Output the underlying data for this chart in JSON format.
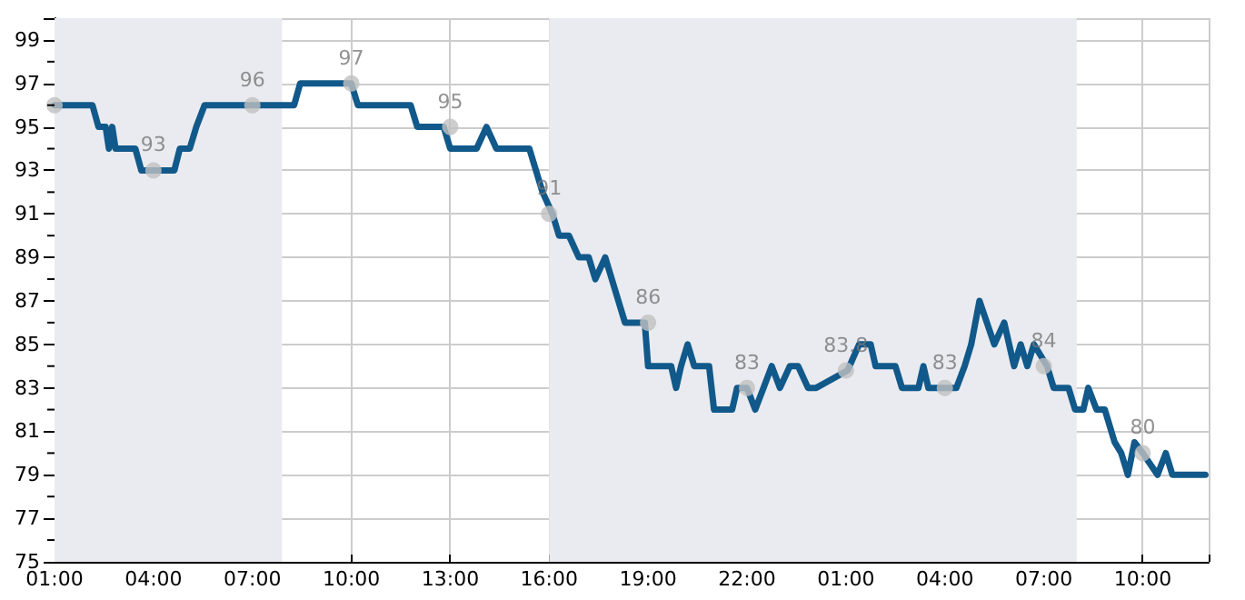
{
  "chart_data": {
    "type": "line",
    "xlim": [
      "--01-01T01:00",
      "--01-02T12:00"
    ],
    "xticks": [
      {
        "value": "--01-01T01:00",
        "label": "01:00"
      },
      {
        "value": "--01-01T04:00",
        "label": "04:00"
      },
      {
        "value": "--01-01T07:00",
        "label": "07:00"
      },
      {
        "value": "--01-01T10:00",
        "label": "10:00"
      },
      {
        "value": "--01-01T13:00",
        "label": "13:00"
      },
      {
        "value": "--01-01T16:00",
        "label": "16:00"
      },
      {
        "value": "--01-01T19:00",
        "label": "19:00"
      },
      {
        "value": "--01-01T22:00",
        "label": "22:00"
      },
      {
        "value": "--01-02T01:00",
        "label": "01:00"
      },
      {
        "value": "--01-02T04:00",
        "label": "04:00"
      },
      {
        "value": "--01-02T07:00",
        "label": "07:00"
      },
      {
        "value": "--01-02T10:00",
        "label": "10:00"
      }
    ],
    "ylim": [
      75,
      100
    ],
    "yticks": [
      75,
      {
        "value": 76,
        "label": null
      },
      77,
      {
        "value": 78,
        "label": null
      },
      79,
      {
        "value": 80,
        "label": null
      },
      81,
      {
        "value": 82,
        "label": null
      },
      83,
      {
        "value": 84,
        "label": null
      },
      85,
      {
        "value": 86,
        "label": null
      },
      87,
      {
        "value": 88,
        "label": null
      },
      89,
      {
        "value": 90,
        "label": null
      },
      91,
      {
        "value": 92,
        "label": null
      },
      93,
      {
        "value": 94,
        "label": null
      },
      95,
      {
        "value": 96,
        "label": null
      },
      97,
      {
        "value": 98,
        "label": null
      },
      99
    ],
    "grid": true,
    "bands": [
      {
        "axis": "x",
        "from": "--01-01T01:00",
        "to": "--01-01T07:54",
        "color": "#eaebf0"
      },
      {
        "axis": "x",
        "from": "--01-01T16:00",
        "to": "--01-02T08:00",
        "color": "#eaebf0"
      }
    ],
    "series": [
      {
        "color": "#11598a",
        "marker": "none",
        "line_style": "solid",
        "x": [
          "--01-01T01:00",
          "--01-01T02:09",
          "--01-01T02:20",
          "--01-01T02:33",
          "--01-01T02:39",
          "--01-01T02:45",
          "--01-01T02:51",
          "--01-01T03:27",
          "--01-01T03:38",
          "--01-01T04:38",
          "--01-01T04:48",
          "--01-01T05:06",
          "--01-01T05:18",
          "--01-01T05:33",
          "--01-01T08:16",
          "--01-01T08:27",
          "--01-01T10:00",
          "--01-01T10:12",
          "--01-01T11:48",
          "--01-01T12:00",
          "--01-01T12:48",
          "--01-01T13:00",
          "--01-01T13:48",
          "--01-01T14:06",
          "--01-01T14:24",
          "--01-01T15:24",
          "--01-01T15:36",
          "--01-01T15:48",
          "--01-01T16:06",
          "--01-01T16:18",
          "--01-01T16:36",
          "--01-01T16:54",
          "--01-01T17:12",
          "--01-01T17:24",
          "--01-01T17:42",
          "--01-01T17:54",
          "--01-01T18:06",
          "--01-01T18:18",
          "--01-01T18:54",
          "--01-01T19:00",
          "--01-01T19:42",
          "--01-01T19:51",
          "--01-01T20:00",
          "--01-01T20:12",
          "--01-01T20:24",
          "--01-01T20:51",
          "--01-01T21:00",
          "--01-01T21:33",
          "--01-01T21:42",
          "--01-01T22:00",
          "--01-01T22:15",
          "--01-01T22:30",
          "--01-01T22:45",
          "--01-01T23:00",
          "--01-01T23:18",
          "--01-01T23:33",
          "--01-01T23:51",
          "--01-02T00:06",
          "--01-02T01:03",
          "--01-02T01:24",
          "--01-02T01:45",
          "--01-02T01:54",
          "--01-02T02:30",
          "--01-02T02:42",
          "--01-02T03:12",
          "--01-02T03:21",
          "--01-02T03:30",
          "--01-02T04:21",
          "--01-02T04:36",
          "--01-02T04:48",
          "--01-02T05:03",
          "--01-02T05:30",
          "--01-02T05:48",
          "--01-02T06:06",
          "--01-02T06:18",
          "--01-02T06:30",
          "--01-02T06:42",
          "--01-02T07:06",
          "--01-02T07:18",
          "--01-02T07:45",
          "--01-02T07:57",
          "--01-02T08:12",
          "--01-02T08:21",
          "--01-02T08:36",
          "--01-02T08:51",
          "--01-02T09:09",
          "--01-02T09:21",
          "--01-02T09:33",
          "--01-02T09:45",
          "--01-02T10:00",
          "--01-02T10:27",
          "--01-02T10:42",
          "--01-02T10:54",
          "--01-02T11:54"
        ],
        "values": [
          96,
          96,
          95,
          95,
          94,
          95,
          94,
          94,
          93,
          93,
          94,
          94,
          95,
          96,
          96,
          97,
          97,
          96,
          96,
          95,
          95,
          94,
          94,
          95,
          94,
          94,
          93,
          92,
          91,
          90,
          90,
          89,
          89,
          88,
          89,
          88,
          87,
          86,
          86,
          84,
          84,
          83,
          84,
          85,
          84,
          84,
          82,
          82,
          83,
          83,
          82,
          83,
          84,
          83,
          84,
          84,
          83,
          83,
          83.8,
          85,
          85,
          84,
          84,
          83,
          83,
          84,
          83,
          83,
          84,
          85,
          87,
          85,
          86,
          84,
          85,
          84,
          85,
          84,
          83,
          83,
          82,
          82,
          83,
          82,
          82,
          80.5,
          80,
          79,
          80.5,
          80,
          79,
          80,
          79,
          79
        ]
      },
      {
        "type": "scatter",
        "color": "#c0c0c0",
        "marker": "circle",
        "x": [
          "--01-01T01:00",
          "--01-01T04:00",
          "--01-01T07:00",
          "--01-01T10:00",
          "--01-01T13:00",
          "--01-01T16:00",
          "--01-01T19:00",
          "--01-01T22:00",
          "--01-02T01:00",
          "--01-02T04:00",
          "--01-02T07:00",
          "--01-02T10:00"
        ],
        "values": [
          96,
          93,
          96,
          97,
          95,
          91,
          86,
          83,
          83.8,
          83,
          84,
          80
        ],
        "value_labels": [
          null,
          "93",
          "96",
          "97",
          "95",
          "91",
          "86",
          "83",
          "83.8",
          "83",
          "84",
          "80"
        ]
      }
    ]
  }
}
